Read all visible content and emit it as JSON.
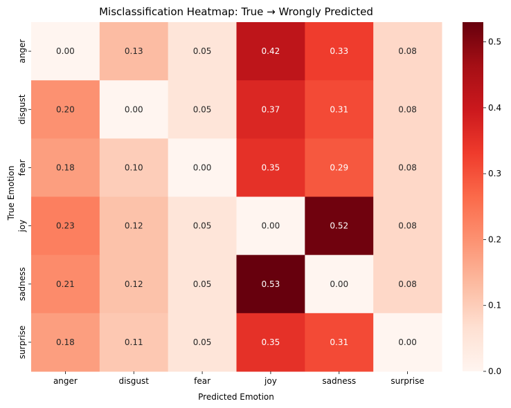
{
  "chart_data": {
    "type": "heatmap",
    "title": "Misclassification Heatmap: True → Wrongly Predicted",
    "xlabel": "Predicted Emotion",
    "ylabel": "True Emotion",
    "x_categories": [
      "anger",
      "disgust",
      "fear",
      "joy",
      "sadness",
      "surprise"
    ],
    "y_categories": [
      "anger",
      "disgust",
      "fear",
      "joy",
      "sadness",
      "surprise"
    ],
    "values": [
      [
        0.0,
        0.13,
        0.05,
        0.42,
        0.33,
        0.08
      ],
      [
        0.2,
        0.0,
        0.05,
        0.37,
        0.31,
        0.08
      ],
      [
        0.18,
        0.1,
        0.0,
        0.35,
        0.29,
        0.08
      ],
      [
        0.23,
        0.12,
        0.05,
        0.0,
        0.52,
        0.08
      ],
      [
        0.21,
        0.12,
        0.05,
        0.53,
        0.0,
        0.08
      ],
      [
        0.18,
        0.11,
        0.05,
        0.35,
        0.31,
        0.0
      ]
    ],
    "colorbar": {
      "vmin": 0.0,
      "vmax": 0.53,
      "ticks": [
        0.0,
        0.1,
        0.2,
        0.3,
        0.4,
        0.5
      ],
      "tick_labels": [
        "0.0",
        "0.1",
        "0.2",
        "0.3",
        "0.4",
        "0.5"
      ]
    },
    "colormap": "Reds",
    "colormap_stops": [
      "#fff5f0",
      "#fee0d2",
      "#fcbba1",
      "#fc9272",
      "#fb6a4a",
      "#ef3b2c",
      "#cb181d",
      "#a50f15",
      "#67000d"
    ],
    "annotation_format": "2 decimals"
  }
}
